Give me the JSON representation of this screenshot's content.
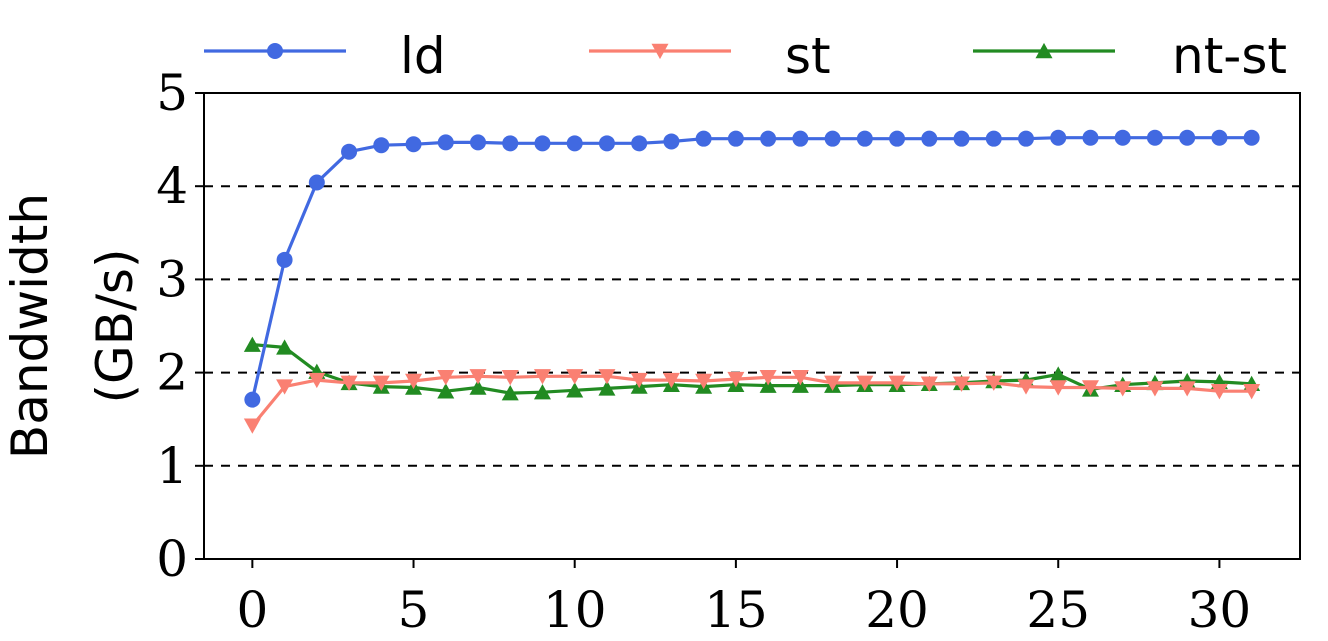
{
  "chart_data": {
    "type": "line",
    "ylabel_lines": [
      "Bandwidth",
      "(GB/s)"
    ],
    "xlim": [
      -1.5,
      32.5
    ],
    "ylim": [
      0,
      5
    ],
    "xticks": [
      0,
      5,
      10,
      15,
      20,
      25,
      30
    ],
    "yticks": [
      0,
      1,
      2,
      3,
      4,
      5
    ],
    "grid": "horizontal dashed",
    "legend_position": "top",
    "x": [
      0,
      1,
      2,
      3,
      4,
      5,
      6,
      7,
      8,
      9,
      10,
      11,
      12,
      13,
      14,
      15,
      16,
      17,
      18,
      19,
      20,
      21,
      22,
      23,
      24,
      25,
      26,
      27,
      28,
      29,
      30,
      31
    ],
    "series": [
      {
        "name": "ld",
        "color": "#4169e1",
        "marker": "circle",
        "values": [
          1.71,
          3.21,
          4.04,
          4.37,
          4.44,
          4.45,
          4.47,
          4.47,
          4.46,
          4.46,
          4.46,
          4.46,
          4.46,
          4.48,
          4.51,
          4.51,
          4.51,
          4.51,
          4.51,
          4.51,
          4.51,
          4.51,
          4.51,
          4.51,
          4.51,
          4.52,
          4.52,
          4.52,
          4.52,
          4.52,
          4.52,
          4.52
        ]
      },
      {
        "name": "st",
        "color": "#fa8072",
        "marker": "triangle-down",
        "values": [
          1.43,
          1.85,
          1.92,
          1.89,
          1.89,
          1.91,
          1.95,
          1.96,
          1.95,
          1.96,
          1.96,
          1.96,
          1.92,
          1.92,
          1.91,
          1.93,
          1.95,
          1.95,
          1.89,
          1.89,
          1.89,
          1.88,
          1.88,
          1.89,
          1.85,
          1.84,
          1.84,
          1.83,
          1.83,
          1.83,
          1.8,
          1.8
        ]
      },
      {
        "name": "nt-st",
        "color": "#228b22",
        "marker": "triangle-up",
        "values": [
          2.3,
          2.27,
          2.01,
          1.89,
          1.85,
          1.84,
          1.8,
          1.84,
          1.78,
          1.79,
          1.81,
          1.83,
          1.85,
          1.87,
          1.85,
          1.87,
          1.86,
          1.86,
          1.86,
          1.87,
          1.87,
          1.88,
          1.89,
          1.91,
          1.92,
          1.98,
          1.82,
          1.87,
          1.89,
          1.91,
          1.9,
          1.88
        ]
      }
    ]
  }
}
